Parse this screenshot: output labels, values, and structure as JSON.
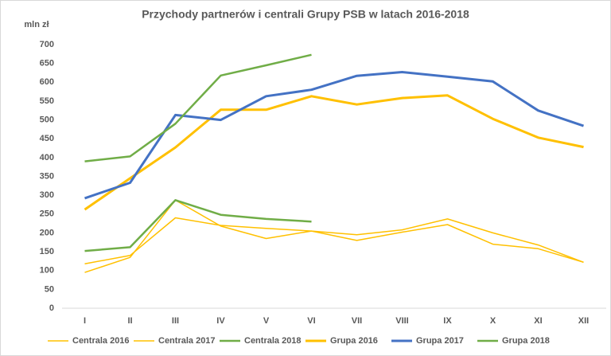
{
  "chart_data": {
    "type": "line",
    "title": "Przychody partnerów i centrali Grupy PSB w latach 2016-2018",
    "y_label": "mln zł",
    "categories": [
      "I",
      "II",
      "III",
      "IV",
      "V",
      "VI",
      "VII",
      "VIII",
      "IX",
      "X",
      "XI",
      "XII"
    ],
    "series": [
      {
        "name": "Centrala 2016",
        "color": "#ffc000",
        "values": [
          118,
          140,
          240,
          220,
          212,
          205,
          195,
          208,
          237,
          200,
          168,
          122
        ]
      },
      {
        "name": "Centrala 2017",
        "color": "#ffc000",
        "values": [
          95,
          135,
          287,
          218,
          185,
          205,
          180,
          202,
          222,
          170,
          158,
          122
        ]
      },
      {
        "name": "Centrala 2018",
        "color": "#70ad47",
        "values": [
          152,
          162,
          287,
          248,
          237,
          230,
          null,
          null,
          null,
          null,
          null,
          null
        ]
      },
      {
        "name": "Grupa 2016",
        "color": "#ffc000",
        "values": [
          262,
          345,
          427,
          527,
          527,
          563,
          541,
          558,
          565,
          503,
          453,
          428
        ]
      },
      {
        "name": "Grupa 2017",
        "color": "#4472c4",
        "values": [
          292,
          333,
          513,
          500,
          563,
          580,
          617,
          627,
          615,
          602,
          525,
          484
        ]
      },
      {
        "name": "Grupa 2018",
        "color": "#70ad47",
        "values": [
          390,
          403,
          490,
          618,
          645,
          673,
          null,
          null,
          null,
          null,
          null,
          null
        ]
      }
    ],
    "ylim": [
      0,
      700
    ],
    "yticks": [
      0,
      50,
      100,
      150,
      200,
      250,
      300,
      350,
      400,
      450,
      500,
      550,
      600,
      650,
      700
    ],
    "grid": false,
    "legend": "bottom"
  }
}
